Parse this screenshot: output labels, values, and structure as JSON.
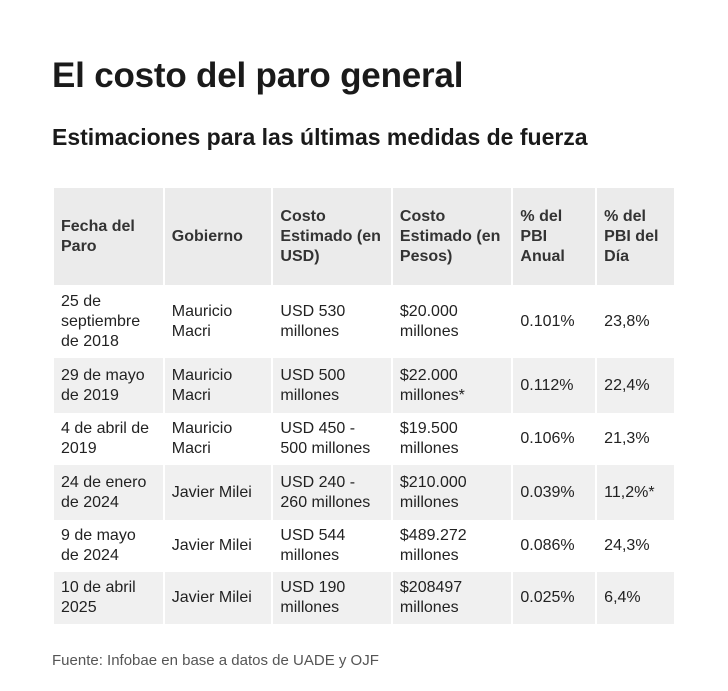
{
  "title": "El costo del paro general",
  "subtitle": "Estimaciones para las últimas medidas de fuerza",
  "table": {
    "headers": [
      "Fecha del Paro",
      "Gobierno",
      "Costo Estimado (en USD)",
      "Costo Estimado (en Pesos)",
      "% del PBI Anual",
      "% del PBI del Día"
    ],
    "rows": [
      [
        "25 de septiembre de 2018",
        "Mauricio Macri",
        "USD 530 millones",
        "$20.000 millones",
        "0.101%",
        "23,8%"
      ],
      [
        "29 de mayo de 2019",
        "Mauricio Macri",
        "USD 500 millones",
        "$22.000 millones*",
        "0.112%",
        "22,4%"
      ],
      [
        "4 de abril de 2019",
        "Mauricio Macri",
        "USD 450 - 500 millones",
        "$19.500 millones",
        "0.106%",
        "21,3%"
      ],
      [
        "24 de enero de 2024",
        "Javier Milei",
        "USD 240 - 260 millones",
        "$210.000 millones",
        "0.039%",
        "11,2%*"
      ],
      [
        "9 de mayo de 2024",
        "Javier Milei",
        "USD 544 millones",
        "$489.272 millones",
        "0.086%",
        "24,3%"
      ],
      [
        "10 de abril 2025",
        "Javier Milei",
        "USD 190 millones",
        "$208497 millones",
        "0.025%",
        "6,4%"
      ]
    ]
  },
  "source": "Fuente: Infobae en base a datos de UADE y OJF",
  "colors": {
    "header_bg": "#ebebeb",
    "stripe_bg": "#f0f0f0"
  }
}
